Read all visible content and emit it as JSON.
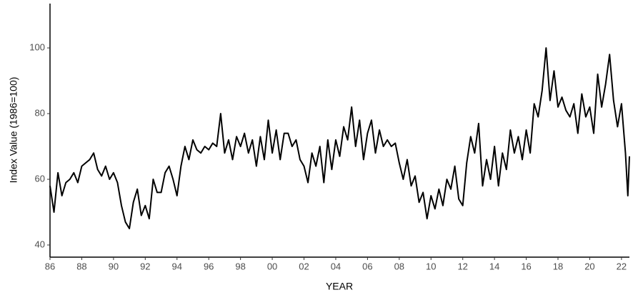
{
  "chart_data": {
    "type": "line",
    "ylabel": "Index Value (1986=100)",
    "xlabel": "YEAR",
    "x": [
      1986,
      1986.25,
      1986.5,
      1986.75,
      1987,
      1987.25,
      1987.5,
      1987.75,
      1988,
      1988.25,
      1988.5,
      1988.75,
      1989,
      1989.25,
      1989.5,
      1989.75,
      1990,
      1990.25,
      1990.5,
      1990.75,
      1991,
      1991.25,
      1991.5,
      1991.75,
      1992,
      1992.25,
      1992.5,
      1992.75,
      1993,
      1993.25,
      1993.5,
      1993.75,
      1994,
      1994.25,
      1994.5,
      1994.75,
      1995,
      1995.25,
      1995.5,
      1995.75,
      1996,
      1996.25,
      1996.5,
      1996.75,
      1997,
      1997.25,
      1997.5,
      1997.75,
      1998,
      1998.25,
      1998.5,
      1998.75,
      1999,
      1999.25,
      1999.5,
      1999.75,
      2000,
      2000.25,
      2000.5,
      2000.75,
      2001,
      2001.25,
      2001.5,
      2001.75,
      2002,
      2002.25,
      2002.5,
      2002.75,
      2003,
      2003.25,
      2003.5,
      2003.75,
      2004,
      2004.25,
      2004.5,
      2004.75,
      2005,
      2005.25,
      2005.5,
      2005.75,
      2006,
      2006.25,
      2006.5,
      2006.75,
      2007,
      2007.25,
      2007.5,
      2007.75,
      2008,
      2008.25,
      2008.5,
      2008.75,
      2009,
      2009.25,
      2009.5,
      2009.75,
      2010,
      2010.25,
      2010.5,
      2010.75,
      2011,
      2011.25,
      2011.5,
      2011.75,
      2012,
      2012.25,
      2012.5,
      2012.75,
      2013,
      2013.25,
      2013.5,
      2013.75,
      2014,
      2014.25,
      2014.5,
      2014.75,
      2015,
      2015.25,
      2015.5,
      2015.75,
      2016,
      2016.25,
      2016.5,
      2016.75,
      2017,
      2017.25,
      2017.5,
      2017.75,
      2018,
      2018.25,
      2018.5,
      2018.75,
      2019,
      2019.25,
      2019.5,
      2019.75,
      2020,
      2020.25,
      2020.5,
      2020.75,
      2021,
      2021.25,
      2021.5,
      2021.75,
      2022,
      2022.25,
      2022.4,
      2022.5
    ],
    "series": [
      {
        "color": "#000000",
        "values": [
          58,
          50,
          62,
          55,
          59,
          60,
          62,
          59,
          64,
          65,
          66,
          68,
          63,
          61,
          64,
          60,
          62,
          59,
          52,
          47,
          45,
          53,
          57,
          49,
          52,
          48,
          60,
          56,
          56,
          62,
          64,
          60,
          55,
          64,
          70,
          66,
          72,
          69,
          68,
          70,
          69,
          71,
          70,
          80,
          68,
          72,
          66,
          73,
          70,
          74,
          68,
          72,
          64,
          73,
          66,
          78,
          68,
          75,
          66,
          74,
          74,
          70,
          72,
          66,
          64,
          59,
          68,
          64,
          70,
          59,
          72,
          63,
          72,
          67,
          76,
          72,
          82,
          70,
          78,
          66,
          74,
          78,
          68,
          75,
          70,
          72,
          70,
          71,
          65,
          60,
          66,
          58,
          61,
          53,
          56,
          48,
          55,
          51,
          57,
          52,
          60,
          57,
          64,
          54,
          52,
          65,
          73,
          68,
          77,
          58,
          66,
          60,
          70,
          58,
          68,
          63,
          75,
          68,
          73,
          66,
          75,
          68,
          83,
          79,
          87,
          100,
          84,
          93,
          82,
          85,
          81,
          79,
          83,
          74,
          86,
          79,
          82,
          74,
          92,
          82,
          89,
          98,
          84,
          76,
          83,
          68,
          55,
          67
        ]
      }
    ],
    "xlim": [
      1986,
      2022.5
    ],
    "xticks": [
      {
        "value": 1986,
        "label": "86"
      },
      {
        "value": 1988,
        "label": "88"
      },
      {
        "value": 1990,
        "label": "90"
      },
      {
        "value": 1992,
        "label": "92"
      },
      {
        "value": 1994,
        "label": "94"
      },
      {
        "value": 1996,
        "label": "96"
      },
      {
        "value": 1998,
        "label": "98"
      },
      {
        "value": 2000,
        "label": "00"
      },
      {
        "value": 2002,
        "label": "02"
      },
      {
        "value": 2004,
        "label": "04"
      },
      {
        "value": 2006,
        "label": "06"
      },
      {
        "value": 2008,
        "label": "08"
      },
      {
        "value": 2010,
        "label": "10"
      },
      {
        "value": 2012,
        "label": "12"
      },
      {
        "value": 2014,
        "label": "14"
      },
      {
        "value": 2016,
        "label": "16"
      },
      {
        "value": 2018,
        "label": "18"
      },
      {
        "value": 2020,
        "label": "20"
      },
      {
        "value": 2022,
        "label": "22"
      }
    ],
    "ylim": [
      36.3,
      113.5
    ],
    "yticks": [
      40,
      60,
      80,
      100
    ],
    "grid": false
  }
}
